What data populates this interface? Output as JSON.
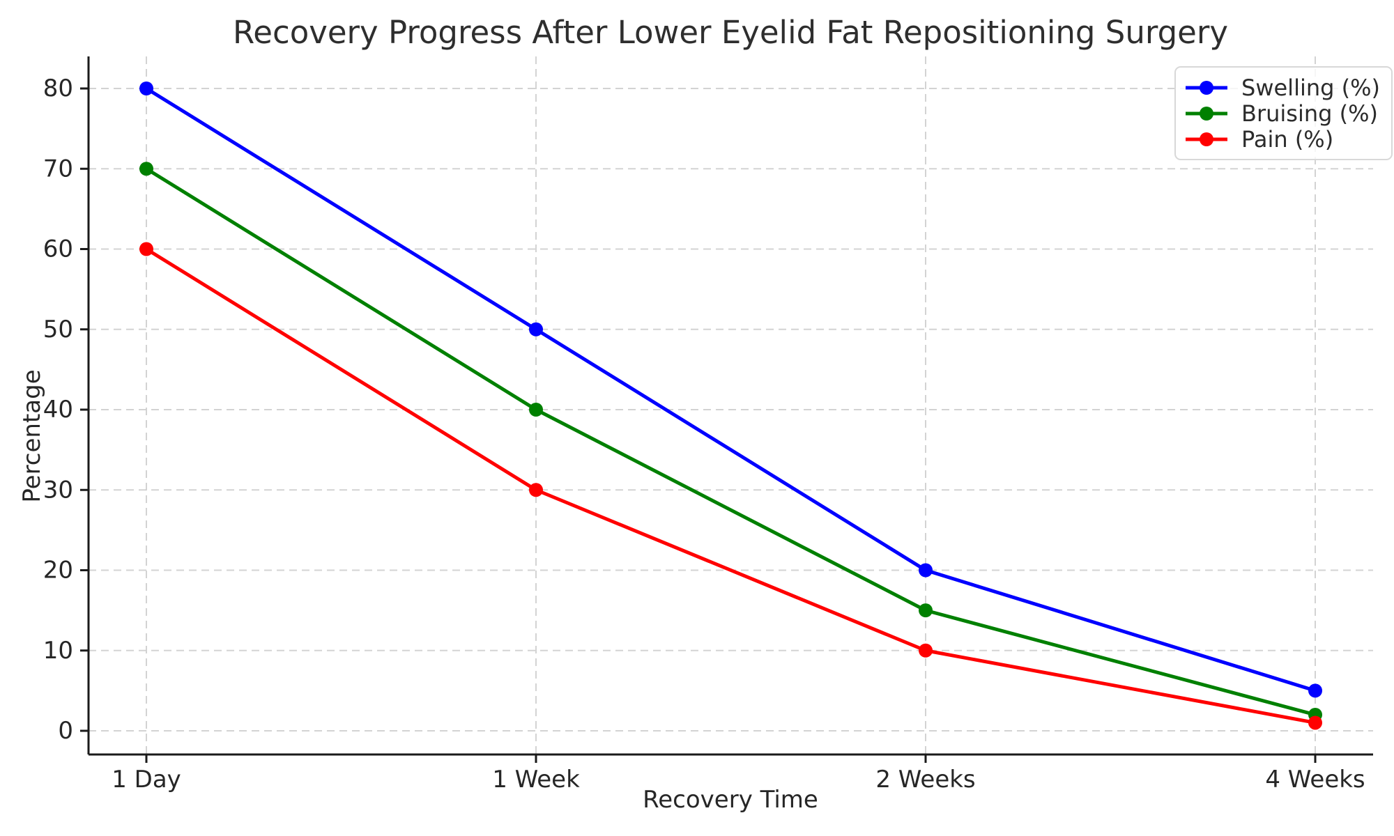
{
  "chart_data": {
    "type": "line",
    "title": "Recovery Progress After Lower Eyelid Fat Repositioning Surgery",
    "xlabel": "Recovery Time",
    "ylabel": "Percentage",
    "categories": [
      "1 Day",
      "1 Week",
      "2 Weeks",
      "4 Weeks"
    ],
    "series": [
      {
        "name": "Swelling (%)",
        "color": "#0000ff",
        "values": [
          80,
          50,
          20,
          5
        ]
      },
      {
        "name": "Bruising (%)",
        "color": "#008000",
        "values": [
          70,
          40,
          15,
          2
        ]
      },
      {
        "name": "Pain (%)",
        "color": "#ff0000",
        "values": [
          60,
          30,
          10,
          1
        ]
      }
    ],
    "yticks": [
      0,
      10,
      20,
      30,
      40,
      50,
      60,
      70,
      80
    ],
    "ylim": [
      0,
      80
    ],
    "grid": "dashed-both-axes",
    "legend_position": "upper-right",
    "marker": "circle",
    "colors": {
      "grid": "#cccccc",
      "axis": "#1a1a1a",
      "text": "#262626",
      "legend_border": "#d8d8d8"
    }
  }
}
